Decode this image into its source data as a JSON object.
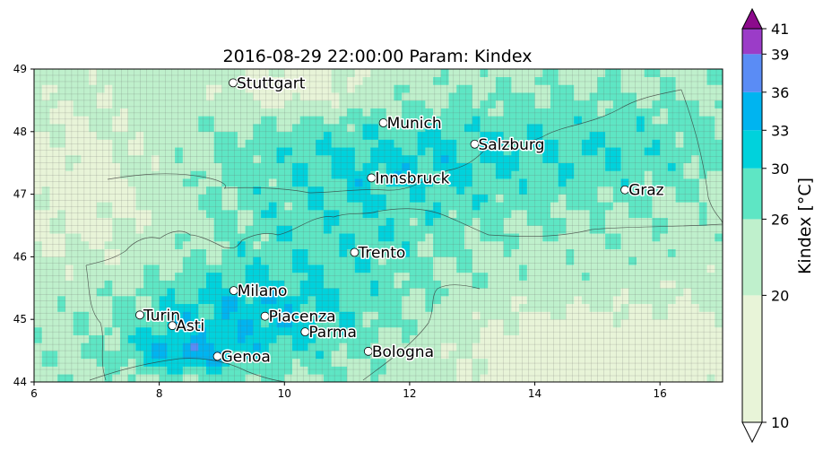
{
  "title": "2016-08-29 22:00:00 Param: Kindex",
  "map": {
    "x_ticks": [
      "6",
      "8",
      "10",
      "12",
      "14",
      "16"
    ],
    "y_ticks": [
      "44",
      "45",
      "46",
      "47",
      "48",
      "49"
    ],
    "lon_range": [
      6,
      17
    ],
    "lat_range": [
      44,
      49
    ]
  },
  "cities": [
    {
      "name": "Stuttgart",
      "lon": 9.18,
      "lat": 48.78
    },
    {
      "name": "Munich",
      "lon": 11.58,
      "lat": 48.14
    },
    {
      "name": "Salzburg",
      "lon": 13.04,
      "lat": 47.8
    },
    {
      "name": "Innsbruck",
      "lon": 11.39,
      "lat": 47.26
    },
    {
      "name": "Graz",
      "lon": 15.44,
      "lat": 47.07
    },
    {
      "name": "Trento",
      "lon": 11.12,
      "lat": 46.07
    },
    {
      "name": "Milano",
      "lon": 9.19,
      "lat": 45.46
    },
    {
      "name": "Turin",
      "lon": 7.69,
      "lat": 45.07
    },
    {
      "name": "Asti",
      "lon": 8.21,
      "lat": 44.9
    },
    {
      "name": "Piacenza",
      "lon": 9.69,
      "lat": 45.05
    },
    {
      "name": "Parma",
      "lon": 10.33,
      "lat": 44.8
    },
    {
      "name": "Bologna",
      "lon": 11.34,
      "lat": 44.49
    },
    {
      "name": "Genoa",
      "lon": 8.93,
      "lat": 44.41
    }
  ],
  "colorbar": {
    "label": "Kindex  [°C]",
    "ticks": [
      "10",
      "20",
      "26",
      "30",
      "33",
      "36",
      "39",
      "41"
    ],
    "bounds": [
      10,
      20,
      26,
      30,
      33,
      36,
      39,
      41
    ],
    "colors": [
      "#e8f4d8",
      "#bff0cc",
      "#5ee6c4",
      "#00d2dc",
      "#00b4f0",
      "#5a8cf5",
      "#9b3cc8"
    ],
    "under_color": "#ffffff",
    "over_color": "#8c0a8c"
  }
}
